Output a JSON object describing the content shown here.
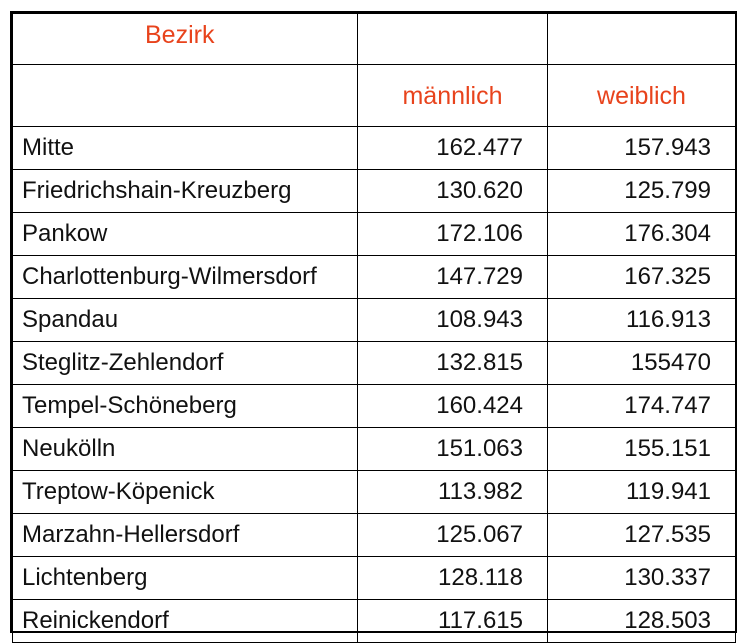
{
  "table": {
    "header": {
      "district": "Bezirk",
      "male": "männlich",
      "female": "weiblich"
    },
    "rows": [
      {
        "district": "Mitte",
        "male": "162.477",
        "female": "157.943"
      },
      {
        "district": "Friedrichshain-Kreuzberg",
        "male": "130.620",
        "female": "125.799"
      },
      {
        "district": "Pankow",
        "male": "172.106",
        "female": "176.304"
      },
      {
        "district": "Charlottenburg-Wilmersdorf",
        "male": "147.729",
        "female": "167.325"
      },
      {
        "district": "Spandau",
        "male": "108.943",
        "female": "116.913"
      },
      {
        "district": "Steglitz-Zehlendorf",
        "male": "132.815",
        "female": "155470"
      },
      {
        "district": "Tempel-Schöneberg",
        "male": "160.424",
        "female": "174.747"
      },
      {
        "district": "Neukölln",
        "male": "151.063",
        "female": "155.151"
      },
      {
        "district": "Treptow-Köpenick",
        "male": "113.982",
        "female": "119.941"
      },
      {
        "district": "Marzahn-Hellersdorf",
        "male": "125.067",
        "female": "127.535"
      },
      {
        "district": "Lichtenberg",
        "male": "128.118",
        "female": "130.337"
      },
      {
        "district": "Reinickendorf",
        "male": "117.615",
        "female": "128.503"
      }
    ]
  },
  "colors": {
    "header_text": "#e8431c",
    "body_text": "#111111",
    "border": "#000000"
  }
}
